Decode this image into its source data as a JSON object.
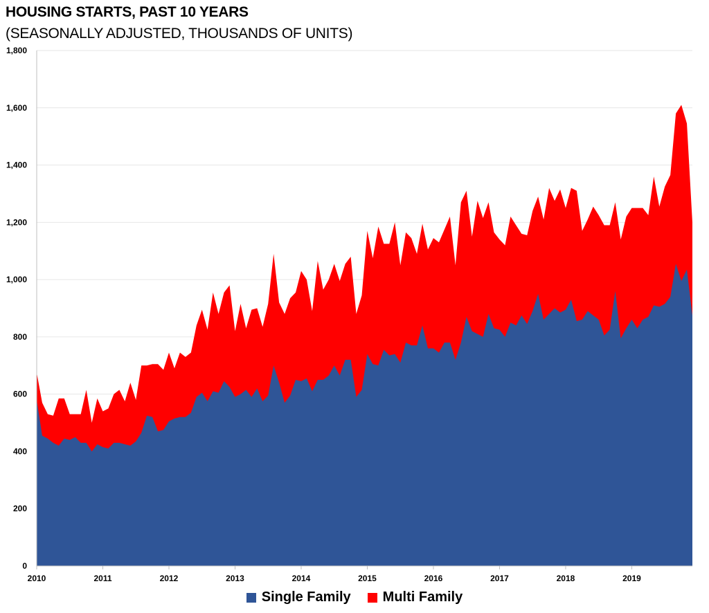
{
  "chart_data": {
    "type": "area",
    "stacked": true,
    "title": "HOUSING STARTS, PAST 10 YEARS",
    "subtitle": "(SEASONALLY ADJUSTED, THOUSANDS OF UNITS)",
    "ylim": [
      0,
      1800
    ],
    "y_ticks": [
      "0",
      "200",
      "400",
      "600",
      "800",
      "1,000",
      "1,200",
      "1,400",
      "1,600",
      "1,800"
    ],
    "x_ticks": [
      "2010",
      "2011",
      "2012",
      "2013",
      "2014",
      "2015",
      "2016",
      "2017",
      "2018",
      "2019"
    ],
    "x_start": "2010-01",
    "x_frequency": "monthly",
    "legend_position": "bottom",
    "series": [
      {
        "name": "Single Family",
        "color": "#2f5597",
        "values": [
          580,
          455,
          445,
          430,
          420,
          445,
          440,
          450,
          430,
          430,
          400,
          425,
          415,
          410,
          430,
          430,
          425,
          420,
          435,
          465,
          525,
          520,
          470,
          475,
          505,
          515,
          520,
          520,
          535,
          590,
          605,
          575,
          610,
          605,
          645,
          625,
          590,
          600,
          615,
          590,
          620,
          575,
          595,
          700,
          640,
          570,
          595,
          650,
          645,
          655,
          610,
          650,
          650,
          665,
          700,
          665,
          720,
          720,
          590,
          615,
          740,
          705,
          700,
          755,
          735,
          740,
          710,
          780,
          770,
          770,
          840,
          760,
          760,
          745,
          780,
          780,
          720,
          780,
          870,
          820,
          810,
          800,
          880,
          830,
          825,
          800,
          850,
          840,
          875,
          845,
          890,
          950,
          860,
          880,
          900,
          885,
          895,
          930,
          855,
          860,
          890,
          875,
          860,
          805,
          825,
          960,
          795,
          830,
          860,
          830,
          860,
          870,
          910,
          905,
          915,
          940,
          1055,
          995,
          1035,
          875
        ]
      },
      {
        "name": "Multi Family",
        "color": "#ff0000",
        "values": [
          95,
          115,
          85,
          95,
          165,
          140,
          90,
          80,
          100,
          185,
          100,
          160,
          125,
          140,
          170,
          185,
          150,
          220,
          145,
          235,
          175,
          185,
          235,
          210,
          240,
          175,
          225,
          210,
          210,
          250,
          290,
          250,
          345,
          275,
          310,
          355,
          230,
          315,
          215,
          305,
          280,
          260,
          320,
          390,
          280,
          310,
          340,
          305,
          385,
          345,
          280,
          415,
          315,
          335,
          355,
          330,
          335,
          360,
          290,
          330,
          430,
          370,
          485,
          370,
          390,
          460,
          340,
          385,
          375,
          320,
          355,
          345,
          385,
          385,
          395,
          440,
          330,
          490,
          440,
          330,
          465,
          415,
          390,
          335,
          315,
          320,
          370,
          350,
          285,
          310,
          350,
          340,
          350,
          440,
          375,
          430,
          355,
          390,
          455,
          310,
          320,
          380,
          365,
          385,
          365,
          310,
          345,
          390,
          390,
          420,
          390,
          355,
          450,
          350,
          410,
          425,
          525,
          615,
          510,
          325
        ]
      }
    ]
  }
}
